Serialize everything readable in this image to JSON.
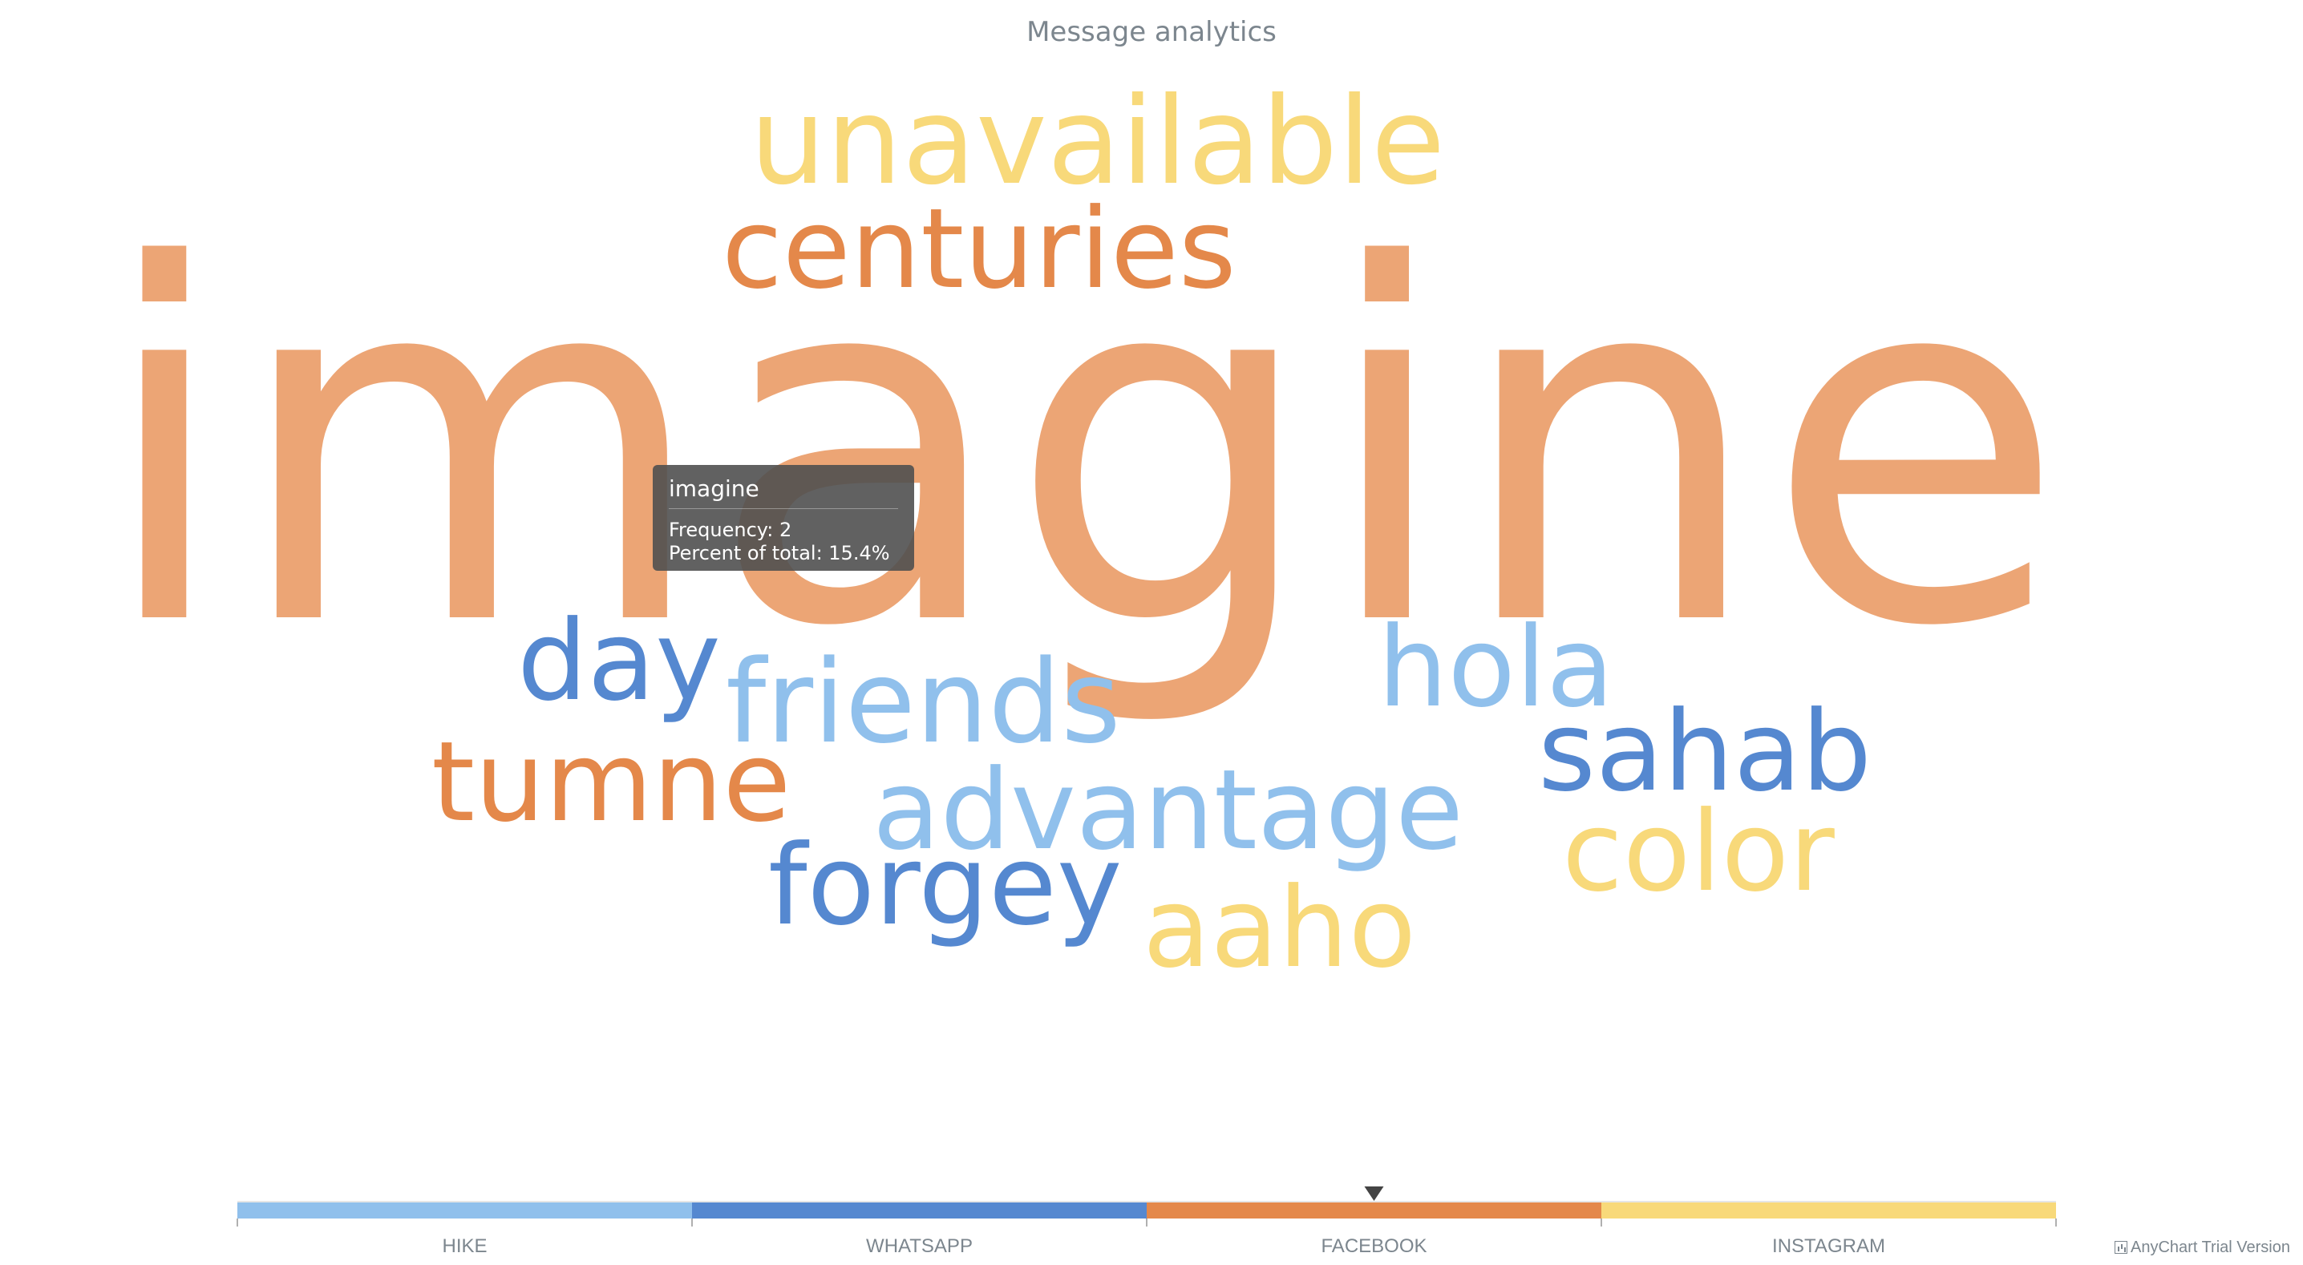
{
  "chart_data": {
    "type": "tag-cloud",
    "title": "Message analytics",
    "categories": [
      "HIKE",
      "WHATSAPP",
      "FACEBOOK",
      "INSTAGRAM"
    ],
    "category_colors": {
      "HIKE": "#90c0ec",
      "WHATSAPP": "#5588d0",
      "FACEBOOK": "#e4884a",
      "INSTAGRAM": "#f8d97a"
    },
    "words": [
      {
        "text": "imagine",
        "category": "FACEBOOK",
        "color": "#eca575"
      },
      {
        "text": "unavailable",
        "category": "INSTAGRAM",
        "color": "#f8d97a"
      },
      {
        "text": "centuries",
        "category": "FACEBOOK",
        "color": "#e4884a"
      },
      {
        "text": "day",
        "category": "WHATSAPP",
        "color": "#5588d0"
      },
      {
        "text": "friends",
        "category": "HIKE",
        "color": "#90c0ec"
      },
      {
        "text": "hola",
        "category": "HIKE",
        "color": "#90c0ec"
      },
      {
        "text": "sahab",
        "category": "WHATSAPP",
        "color": "#5588d0"
      },
      {
        "text": "tumne",
        "category": "FACEBOOK",
        "color": "#e4884a"
      },
      {
        "text": "advantage",
        "category": "HIKE",
        "color": "#90c0ec"
      },
      {
        "text": "color",
        "category": "INSTAGRAM",
        "color": "#f8d97a"
      },
      {
        "text": "forgey",
        "category": "WHATSAPP",
        "color": "#5588d0"
      },
      {
        "text": "aaho",
        "category": "INSTAGRAM",
        "color": "#f8d97a"
      }
    ],
    "color_range_marker": "FACEBOOK"
  },
  "tooltip": {
    "title": "imagine",
    "frequency": "Frequency: 2",
    "percent": "Percent of total: 15.4%"
  },
  "credit": "AnyChart Trial Version"
}
